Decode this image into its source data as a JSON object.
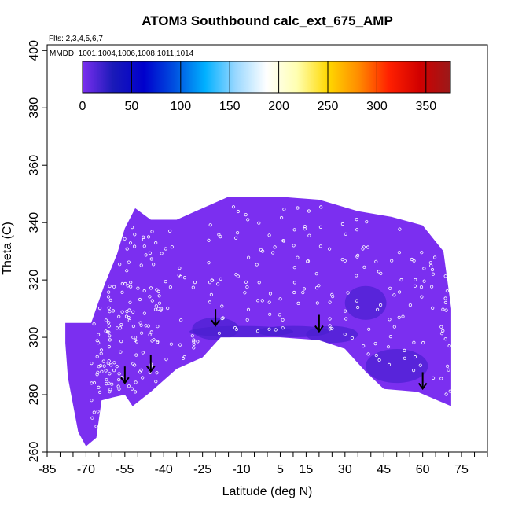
{
  "chart_data": {
    "type": "heatmap",
    "title": "ATOM3 Southbound calc_ext_675_AMP",
    "subtitle_flights": "Flts: 2,3,4,5,6,7",
    "subtitle_dates": "MMDD: 1001,1004,1006,1008,1011,1014",
    "xlabel": "Latitude (deg N)",
    "ylabel": "Theta (C)",
    "xlim": [
      -85,
      85
    ],
    "ylim": [
      260,
      402
    ],
    "x_ticks": [
      "-85",
      "-70",
      "-55",
      "-40",
      "-25",
      "-10",
      "5",
      "15",
      "30",
      "45",
      "60",
      "75"
    ],
    "x_tick_values": [
      -85,
      -70,
      -55,
      -40,
      -25,
      -10,
      5,
      15,
      30,
      45,
      60,
      75
    ],
    "y_ticks": [
      "260",
      "280",
      "300",
      "320",
      "340",
      "360",
      "380",
      "400"
    ],
    "y_tick_values": [
      260,
      280,
      300,
      320,
      340,
      360,
      380,
      400
    ],
    "colorbar": {
      "ticks": [
        "0",
        "50",
        "100",
        "150",
        "200",
        "250",
        "300",
        "350"
      ],
      "tick_values": [
        0,
        50,
        100,
        150,
        200,
        250,
        300,
        350
      ],
      "range": [
        0,
        375
      ],
      "colors": [
        "#7b2fef",
        "#1a1ab8",
        "#0000cc",
        "#0050e0",
        "#00b0ff",
        "#9ad8ff",
        "#ffffff",
        "#ffffb0",
        "#ffd800",
        "#ff8c00",
        "#ff2000",
        "#d00000",
        "#9a1a1a"
      ]
    },
    "field_value_typical": 10,
    "field_color": "#7b2ff0",
    "field_dark_color": "#4a1fd0",
    "field_upper_envelope": [
      {
        "lat": -68,
        "theta": 305
      },
      {
        "lat": -63,
        "theta": 318
      },
      {
        "lat": -58,
        "theta": 329
      },
      {
        "lat": -55,
        "theta": 338
      },
      {
        "lat": -51,
        "theta": 345
      },
      {
        "lat": -45,
        "theta": 341
      },
      {
        "lat": -35,
        "theta": 341
      },
      {
        "lat": -25,
        "theta": 345
      },
      {
        "lat": -15,
        "theta": 349
      },
      {
        "lat": 5,
        "theta": 349
      },
      {
        "lat": 20,
        "theta": 348
      },
      {
        "lat": 35,
        "theta": 344
      },
      {
        "lat": 48,
        "theta": 342
      },
      {
        "lat": 60,
        "theta": 339
      },
      {
        "lat": 68,
        "theta": 330
      },
      {
        "lat": 71,
        "theta": 310
      },
      {
        "lat": 71,
        "theta": 276
      }
    ],
    "field_lower_envelope": [
      {
        "lat": 71,
        "theta": 276
      },
      {
        "lat": 58,
        "theta": 281
      },
      {
        "lat": 45,
        "theta": 282
      },
      {
        "lat": 38,
        "theta": 288
      },
      {
        "lat": 30,
        "theta": 296
      },
      {
        "lat": 20,
        "theta": 299
      },
      {
        "lat": 5,
        "theta": 300
      },
      {
        "lat": -10,
        "theta": 300
      },
      {
        "lat": -18,
        "theta": 300
      },
      {
        "lat": -25,
        "theta": 293
      },
      {
        "lat": -35,
        "theta": 289
      },
      {
        "lat": -45,
        "theta": 281
      },
      {
        "lat": -52,
        "theta": 276
      },
      {
        "lat": -55,
        "theta": 280
      },
      {
        "lat": -60,
        "theta": 279
      },
      {
        "lat": -64,
        "theta": 278
      },
      {
        "lat": -66,
        "theta": 265
      },
      {
        "lat": -70,
        "theta": 262
      },
      {
        "lat": -73,
        "theta": 267
      },
      {
        "lat": -77,
        "theta": 286
      },
      {
        "lat": -78,
        "theta": 298
      },
      {
        "lat": -78,
        "theta": 305
      },
      {
        "lat": -68,
        "theta": 305
      }
    ],
    "tropopause_arrows": [
      {
        "lat": -55,
        "theta": 286
      },
      {
        "lat": -45,
        "theta": 290
      },
      {
        "lat": -20,
        "theta": 306
      },
      {
        "lat": 20,
        "theta": 304
      },
      {
        "lat": 60,
        "theta": 284
      }
    ]
  }
}
